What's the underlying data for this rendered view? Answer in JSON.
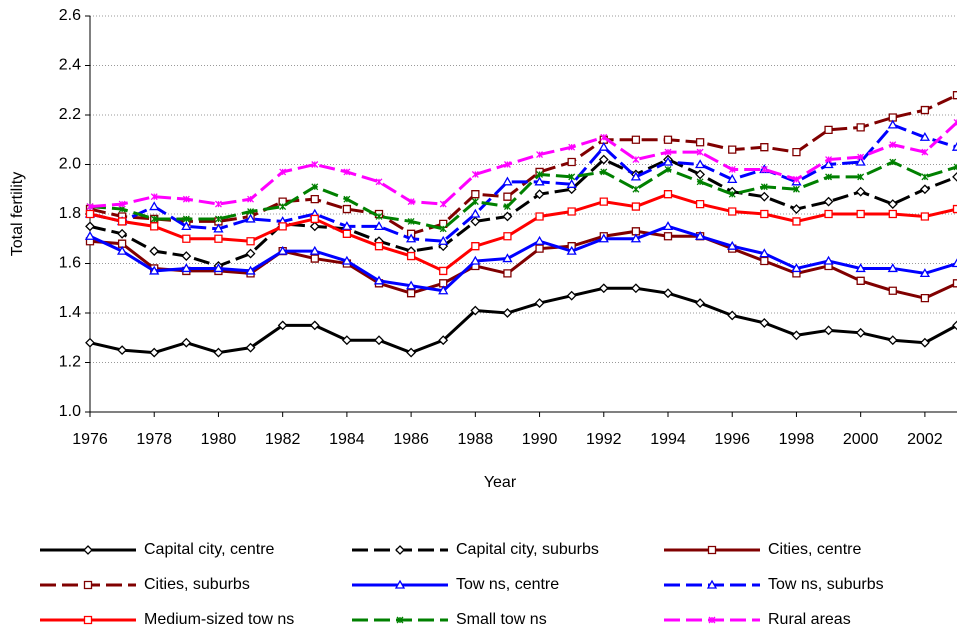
{
  "chart_data": {
    "type": "line",
    "x_label": "Year",
    "y_label": "Total fertility",
    "x": [
      1976,
      1977,
      1978,
      1979,
      1980,
      1981,
      1982,
      1983,
      1984,
      1985,
      1986,
      1987,
      1988,
      1989,
      1990,
      1991,
      1992,
      1993,
      1994,
      1995,
      1996,
      1997,
      1998,
      1999,
      2000,
      2001,
      2002,
      2003
    ],
    "xlim": [
      1976,
      2003
    ],
    "xticks": [
      1976,
      1978,
      1980,
      1982,
      1984,
      1986,
      1988,
      1990,
      1992,
      1994,
      1996,
      1998,
      2000,
      2002
    ],
    "ylim": [
      1,
      2.6
    ],
    "yticks": [
      {
        "value": 1,
        "label": "1.0"
      },
      {
        "value": 1.2,
        "label": "1.2"
      },
      {
        "value": 1.4,
        "label": "1.4"
      },
      {
        "value": 1.6,
        "label": "1.6"
      },
      {
        "value": 1.8,
        "label": "1.8"
      },
      {
        "value": 2,
        "label": "2.0"
      },
      {
        "value": 2.2,
        "label": "2.2"
      },
      {
        "value": 2.4,
        "label": "2.4"
      },
      {
        "value": 2.6,
        "label": "2.6"
      }
    ],
    "grid": true,
    "legend": "bottom",
    "series": [
      {
        "name": "Capital city, centre",
        "color": "#000000",
        "dashed": false,
        "marker": "diamond",
        "values": [
          1.28,
          1.25,
          1.24,
          1.28,
          1.24,
          1.26,
          1.35,
          1.35,
          1.29,
          1.29,
          1.24,
          1.29,
          1.41,
          1.4,
          1.44,
          1.47,
          1.5,
          1.5,
          1.48,
          1.44,
          1.39,
          1.36,
          1.31,
          1.33,
          1.32,
          1.29,
          1.28,
          1.35
        ]
      },
      {
        "name": "Capital city, suburbs",
        "color": "#000000",
        "dashed": true,
        "marker": "diamond",
        "values": [
          1.75,
          1.72,
          1.65,
          1.63,
          1.59,
          1.64,
          1.76,
          1.75,
          1.74,
          1.69,
          1.65,
          1.67,
          1.77,
          1.79,
          1.88,
          1.9,
          2.02,
          1.96,
          2.02,
          1.96,
          1.89,
          1.87,
          1.82,
          1.85,
          1.89,
          1.84,
          1.9,
          1.95
        ]
      },
      {
        "name": "Cities, centre",
        "color": "#800000",
        "dashed": false,
        "marker": "square",
        "values": [
          1.69,
          1.68,
          1.58,
          1.57,
          1.57,
          1.56,
          1.65,
          1.62,
          1.6,
          1.52,
          1.48,
          1.52,
          1.59,
          1.56,
          1.66,
          1.67,
          1.71,
          1.73,
          1.71,
          1.71,
          1.66,
          1.61,
          1.56,
          1.59,
          1.53,
          1.49,
          1.46,
          1.52
        ]
      },
      {
        "name": "Cities, suburbs",
        "color": "#800000",
        "dashed": true,
        "marker": "square",
        "values": [
          1.82,
          1.79,
          1.78,
          1.77,
          1.77,
          1.79,
          1.85,
          1.86,
          1.82,
          1.8,
          1.72,
          1.76,
          1.88,
          1.87,
          1.97,
          2.01,
          2.1,
          2.1,
          2.1,
          2.09,
          2.06,
          2.07,
          2.05,
          2.14,
          2.15,
          2.19,
          2.22,
          2.28
        ]
      },
      {
        "name": "Tow ns, centre",
        "color": "#0000ff",
        "dashed": false,
        "marker": "triangle",
        "values": [
          1.71,
          1.65,
          1.57,
          1.58,
          1.58,
          1.57,
          1.65,
          1.65,
          1.61,
          1.53,
          1.51,
          1.49,
          1.61,
          1.62,
          1.69,
          1.65,
          1.7,
          1.7,
          1.75,
          1.71,
          1.67,
          1.64,
          1.58,
          1.61,
          1.58,
          1.58,
          1.56,
          1.6
        ]
      },
      {
        "name": "Tow ns, suburbs",
        "color": "#0000ff",
        "dashed": true,
        "marker": "triangle",
        "values": [
          1.8,
          1.77,
          1.83,
          1.75,
          1.74,
          1.78,
          1.77,
          1.8,
          1.75,
          1.75,
          1.7,
          1.69,
          1.8,
          1.93,
          1.93,
          1.92,
          2.07,
          1.95,
          2.01,
          2.0,
          1.94,
          1.98,
          1.93,
          2.0,
          2.01,
          2.16,
          2.11,
          2.07
        ]
      },
      {
        "name": "Medium-sized tow ns",
        "color": "#ff0000",
        "dashed": false,
        "marker": "square",
        "values": [
          1.8,
          1.77,
          1.75,
          1.7,
          1.7,
          1.69,
          1.75,
          1.78,
          1.72,
          1.67,
          1.63,
          1.57,
          1.67,
          1.71,
          1.79,
          1.81,
          1.85,
          1.83,
          1.88,
          1.84,
          1.81,
          1.8,
          1.77,
          1.8,
          1.8,
          1.8,
          1.79,
          1.82
        ]
      },
      {
        "name": "Small tow ns",
        "color": "#008000",
        "dashed": true,
        "marker": "x",
        "values": [
          1.83,
          1.82,
          1.78,
          1.78,
          1.78,
          1.81,
          1.83,
          1.91,
          1.86,
          1.79,
          1.77,
          1.74,
          1.85,
          1.83,
          1.96,
          1.95,
          1.97,
          1.9,
          1.98,
          1.93,
          1.88,
          1.91,
          1.9,
          1.95,
          1.95,
          2.01,
          1.95,
          1.99
        ]
      },
      {
        "name": "Rural areas",
        "color": "#ff00ff",
        "dashed": true,
        "marker": "x",
        "values": [
          1.83,
          1.84,
          1.87,
          1.86,
          1.84,
          1.86,
          1.97,
          2.0,
          1.97,
          1.93,
          1.85,
          1.84,
          1.96,
          2.0,
          2.04,
          2.07,
          2.11,
          2.02,
          2.05,
          2.05,
          1.98,
          1.98,
          1.94,
          2.02,
          2.03,
          2.08,
          2.05,
          2.17
        ]
      }
    ]
  }
}
